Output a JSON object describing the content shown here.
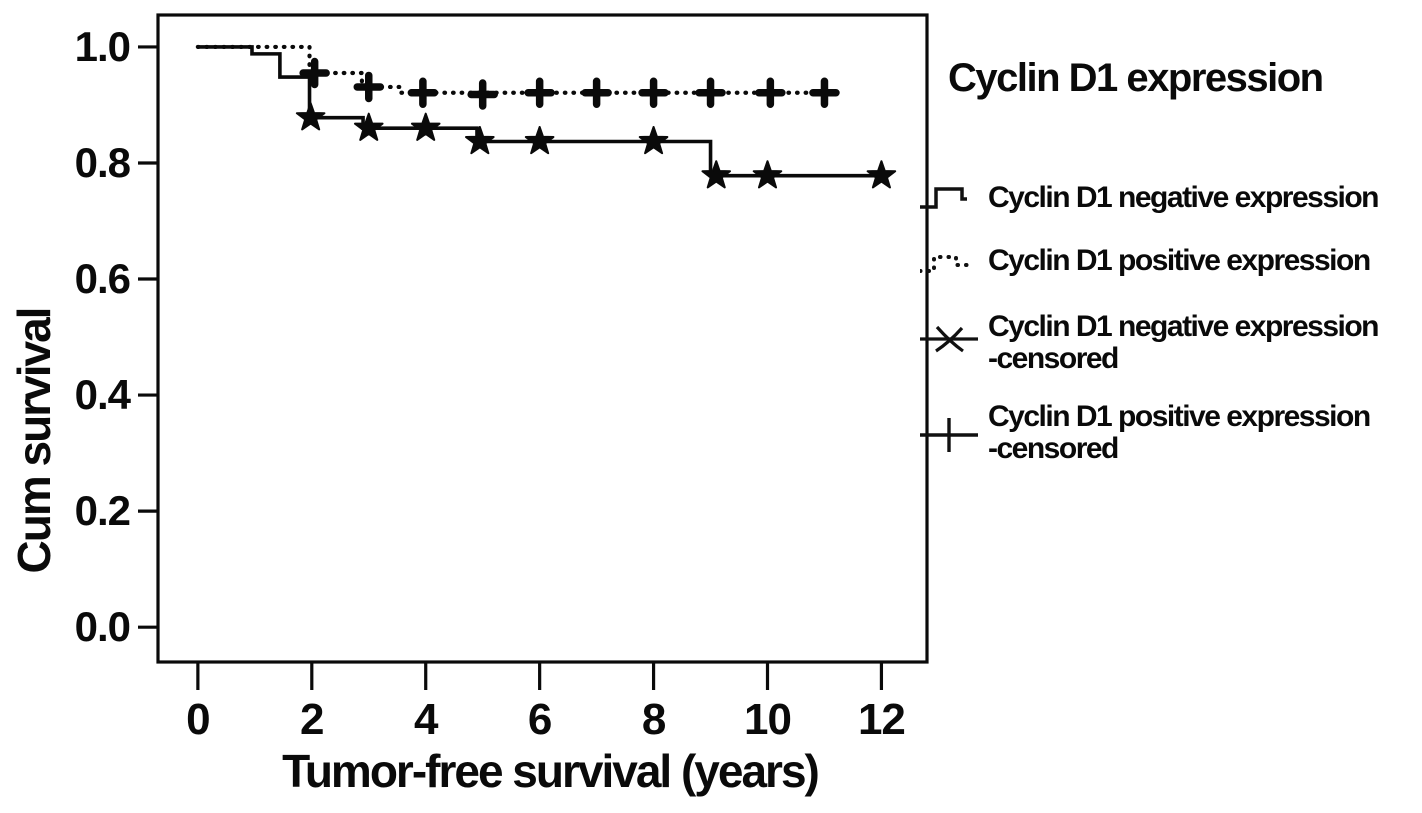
{
  "legend": {
    "title": "Cyclin D1 expression",
    "items": [
      {
        "label": "Cyclin D1 negative expression",
        "glyph": "solid-step-line"
      },
      {
        "label": "Cyclin D1 positive expression",
        "glyph": "dotted-step-line"
      },
      {
        "label": "Cyclin D1 negative expression",
        "label2": "-censored",
        "glyph": "star-marker"
      },
      {
        "label": "Cyclin D1 positive expression",
        "label2": "-censored",
        "glyph": "plus-marker"
      }
    ]
  },
  "chart_data": {
    "type": "line",
    "subtype": "kaplan-meier-step",
    "title": "",
    "xlabel": "Tumor-free survival (years)",
    "ylabel": "Cum survival",
    "xlim": [
      -0.7,
      12.8
    ],
    "ylim": [
      -0.06,
      1.055
    ],
    "xticks": [
      0,
      2,
      4,
      6,
      8,
      10,
      12
    ],
    "xtick_labels": [
      "0",
      "2",
      "4",
      "6",
      "8",
      "10",
      "12"
    ],
    "yticks": [
      0.0,
      0.2,
      0.4,
      0.6,
      0.8,
      1.0
    ],
    "ytick_labels": [
      "0.0",
      "0.2",
      "0.4",
      "0.6",
      "0.8",
      "1.0"
    ],
    "grid": false,
    "legend_position": "right",
    "line_color": "#0a0a0a",
    "series": [
      {
        "name": "Cyclin D1 negative expression",
        "line": "solid",
        "marker": "star",
        "steps": [
          [
            0,
            1.0
          ],
          [
            0.95,
            0.988
          ],
          [
            1.44,
            0.948
          ],
          [
            1.96,
            0.878
          ],
          [
            2.9,
            0.86
          ],
          [
            4.9,
            0.837
          ],
          [
            9.0,
            0.778
          ]
        ],
        "end_x": 12.05,
        "censored": [
          [
            1.98,
            0.878
          ],
          [
            3.0,
            0.86
          ],
          [
            4.0,
            0.86
          ],
          [
            4.95,
            0.837
          ],
          [
            6.0,
            0.837
          ],
          [
            8.0,
            0.837
          ],
          [
            9.1,
            0.778
          ],
          [
            10.0,
            0.778
          ],
          [
            12.0,
            0.778
          ]
        ]
      },
      {
        "name": "Cyclin D1 positive expression",
        "line": "dotted",
        "marker": "plus",
        "steps": [
          [
            0,
            1.0
          ],
          [
            1.96,
            0.955
          ],
          [
            2.88,
            0.931
          ],
          [
            3.55,
            0.921
          ]
        ],
        "end_x": 11.1,
        "censored": [
          [
            2.05,
            0.955
          ],
          [
            3.0,
            0.931
          ],
          [
            3.95,
            0.921
          ],
          [
            5.0,
            0.918
          ],
          [
            6.0,
            0.921
          ],
          [
            7.0,
            0.921
          ],
          [
            8.0,
            0.921
          ],
          [
            9.0,
            0.921
          ],
          [
            10.05,
            0.921
          ],
          [
            11.0,
            0.921
          ]
        ]
      }
    ]
  }
}
